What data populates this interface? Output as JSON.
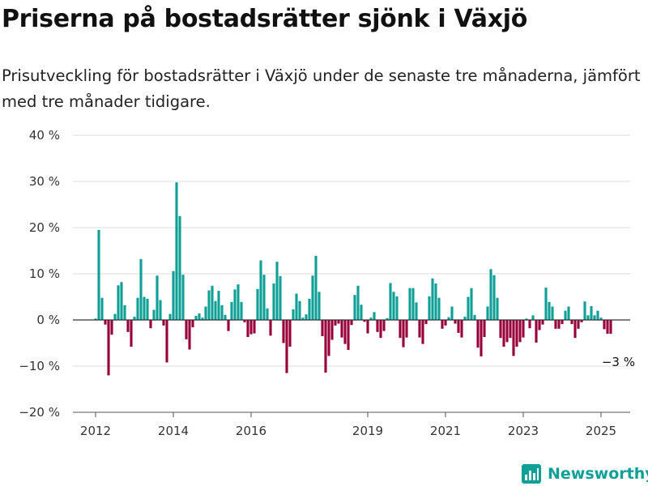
{
  "header": {
    "title": "Priserna på bostadsrätter sjönk i Växjö",
    "subtitle": "Prisutveckling för bostadsrätter i Växjö under de senaste tre månaderna, jämfört med tre månader tidigare."
  },
  "brand": {
    "name": "Newsworthy",
    "logo_icon": "bar-chart-logo-icon"
  },
  "colors": {
    "positive": "#0e9f97",
    "negative": "#98003a",
    "grid": "#dcdcdc",
    "axis": "#555555",
    "brand": "#0e9f97"
  },
  "chart_data": {
    "type": "bar",
    "title": "Priserna på bostadsrätter sjönk i Växjö",
    "xlabel": "",
    "ylabel": "",
    "ylim": [
      -20,
      40
    ],
    "y_ticks": [
      {
        "value": 40,
        "label": "40 %"
      },
      {
        "value": 30,
        "label": "30 %"
      },
      {
        "value": 20,
        "label": "20 %"
      },
      {
        "value": 10,
        "label": "10 %"
      },
      {
        "value": 0,
        "label": "0 %"
      },
      {
        "value": -10,
        "label": "−10 %"
      },
      {
        "value": -20,
        "label": "−20 %"
      }
    ],
    "x_ticks": [
      {
        "date": "2012-01",
        "label": "2012"
      },
      {
        "date": "2014-01",
        "label": "2014"
      },
      {
        "date": "2016-01",
        "label": "2016"
      },
      {
        "date": "2019-01",
        "label": "2019"
      },
      {
        "date": "2021-01",
        "label": "2021"
      },
      {
        "date": "2023-01",
        "label": "2023"
      },
      {
        "date": "2025-01",
        "label": "2025"
      }
    ],
    "x_range": [
      "2011-06",
      "2025-10"
    ],
    "grid": true,
    "legend": "none",
    "annotation": {
      "text": "−3 %",
      "date": "2025-04",
      "value": -3
    },
    "series": [
      {
        "data": [
          [
            "2012-01",
            0.3
          ],
          [
            "2012-02",
            19.5
          ],
          [
            "2012-03",
            4.8
          ],
          [
            "2012-04",
            -1
          ],
          [
            "2012-05",
            -12
          ],
          [
            "2012-06",
            -3.2
          ],
          [
            "2012-07",
            1.3
          ],
          [
            "2012-08",
            7.5
          ],
          [
            "2012-09",
            8.2
          ],
          [
            "2012-10",
            3.2
          ],
          [
            "2012-11",
            -2.6
          ],
          [
            "2012-12",
            -5.8
          ],
          [
            "2013-01",
            0.7
          ],
          [
            "2013-02",
            4.8
          ],
          [
            "2013-03",
            13.2
          ],
          [
            "2013-04",
            5
          ],
          [
            "2013-05",
            4.6
          ],
          [
            "2013-06",
            -1.8
          ],
          [
            "2013-07",
            2.2
          ],
          [
            "2013-08",
            9.6
          ],
          [
            "2013-09",
            4.3
          ],
          [
            "2013-10",
            -1.2
          ],
          [
            "2013-11",
            -9.2
          ],
          [
            "2013-12",
            1.3
          ],
          [
            "2014-01",
            10.6
          ],
          [
            "2014-02",
            29.8
          ],
          [
            "2014-03",
            22.5
          ],
          [
            "2014-04",
            9.8
          ],
          [
            "2014-05",
            -4.2
          ],
          [
            "2014-06",
            -6.4
          ],
          [
            "2014-07",
            -1.6
          ],
          [
            "2014-08",
            0.9
          ],
          [
            "2014-09",
            1.4
          ],
          [
            "2014-10",
            0.5
          ],
          [
            "2014-11",
            2.9
          ],
          [
            "2014-12",
            6.4
          ],
          [
            "2015-01",
            7.4
          ],
          [
            "2015-02",
            4.1
          ],
          [
            "2015-03",
            6.3
          ],
          [
            "2015-04",
            3.2
          ],
          [
            "2015-05",
            1.1
          ],
          [
            "2015-06",
            -2.4
          ],
          [
            "2015-07",
            3.9
          ],
          [
            "2015-08",
            6.6
          ],
          [
            "2015-09",
            7.7
          ],
          [
            "2015-10",
            3.9
          ],
          [
            "2015-11",
            -0.5
          ],
          [
            "2015-12",
            -3.7
          ],
          [
            "2016-01",
            -3.1
          ],
          [
            "2016-02",
            -2.9
          ],
          [
            "2016-03",
            6.7
          ],
          [
            "2016-04",
            12.9
          ],
          [
            "2016-05",
            9.8
          ],
          [
            "2016-06",
            2.5
          ],
          [
            "2016-07",
            -3.4
          ],
          [
            "2016-08",
            7.9
          ],
          [
            "2016-09",
            12.6
          ],
          [
            "2016-10",
            9.5
          ],
          [
            "2016-11",
            -5
          ],
          [
            "2016-12",
            -11.5
          ],
          [
            "2017-01",
            -5.8
          ],
          [
            "2017-02",
            2.3
          ],
          [
            "2017-03",
            5.7
          ],
          [
            "2017-04",
            4.1
          ],
          [
            "2017-05",
            0.5
          ],
          [
            "2017-06",
            1.2
          ],
          [
            "2017-07",
            4.6
          ],
          [
            "2017-08",
            9.6
          ],
          [
            "2017-09",
            13.9
          ],
          [
            "2017-10",
            6.1
          ],
          [
            "2017-11",
            -3.5
          ],
          [
            "2017-12",
            -11.4
          ],
          [
            "2018-01",
            -7.8
          ],
          [
            "2018-02",
            -4.3
          ],
          [
            "2018-03",
            -1.2
          ],
          [
            "2018-04",
            -0.8
          ],
          [
            "2018-05",
            -3.8
          ],
          [
            "2018-06",
            -5.2
          ],
          [
            "2018-07",
            -6.5
          ],
          [
            "2018-08",
            -1.1
          ],
          [
            "2018-09",
            5.4
          ],
          [
            "2018-10",
            7.4
          ],
          [
            "2018-11",
            3.3
          ],
          [
            "2018-12",
            -0.4
          ],
          [
            "2019-01",
            -2.9
          ],
          [
            "2019-02",
            0.5
          ],
          [
            "2019-03",
            1.7
          ],
          [
            "2019-04",
            -2.6
          ],
          [
            "2019-05",
            -3.9
          ],
          [
            "2019-06",
            -2.4
          ],
          [
            "2019-07",
            0.4
          ],
          [
            "2019-08",
            8
          ],
          [
            "2019-09",
            6.1
          ],
          [
            "2019-10",
            5.1
          ],
          [
            "2019-11",
            -3.9
          ],
          [
            "2019-12",
            -5.9
          ],
          [
            "2020-01",
            -3.8
          ],
          [
            "2020-02",
            6.9
          ],
          [
            "2020-03",
            6.9
          ],
          [
            "2020-04",
            3.8
          ],
          [
            "2020-05",
            -3.8
          ],
          [
            "2020-06",
            -5.2
          ],
          [
            "2020-07",
            -0.9
          ],
          [
            "2020-08",
            5.1
          ],
          [
            "2020-09",
            9
          ],
          [
            "2020-10",
            7.9
          ],
          [
            "2020-11",
            4.8
          ],
          [
            "2020-12",
            -1.9
          ],
          [
            "2021-01",
            -1.2
          ],
          [
            "2021-02",
            0.6
          ],
          [
            "2021-03",
            2.9
          ],
          [
            "2021-04",
            -0.8
          ],
          [
            "2021-05",
            -2.8
          ],
          [
            "2021-06",
            -3.8
          ],
          [
            "2021-07",
            0.7
          ],
          [
            "2021-08",
            5
          ],
          [
            "2021-09",
            6.9
          ],
          [
            "2021-10",
            1.1
          ],
          [
            "2021-11",
            -6
          ],
          [
            "2021-12",
            -7.9
          ],
          [
            "2022-01",
            -3.7
          ],
          [
            "2022-02",
            2.9
          ],
          [
            "2022-03",
            11
          ],
          [
            "2022-04",
            9.7
          ],
          [
            "2022-05",
            4.8
          ],
          [
            "2022-06",
            -3.9
          ],
          [
            "2022-07",
            -5.8
          ],
          [
            "2022-08",
            -4.8
          ],
          [
            "2022-09",
            -3.9
          ],
          [
            "2022-10",
            -7.8
          ],
          [
            "2022-11",
            -5.8
          ],
          [
            "2022-12",
            -4.8
          ],
          [
            "2023-01",
            -3.8
          ],
          [
            "2023-02",
            0.3
          ],
          [
            "2023-03",
            -1.8
          ],
          [
            "2023-04",
            1
          ],
          [
            "2023-05",
            -4.9
          ],
          [
            "2023-06",
            -2.2
          ],
          [
            "2023-07",
            -1
          ],
          [
            "2023-08",
            7
          ],
          [
            "2023-09",
            3.9
          ],
          [
            "2023-10",
            2.9
          ],
          [
            "2023-11",
            -1.9
          ],
          [
            "2023-12",
            -1.9
          ],
          [
            "2024-01",
            -0.9
          ],
          [
            "2024-02",
            2
          ],
          [
            "2024-03",
            2.9
          ],
          [
            "2024-04",
            -0.9
          ],
          [
            "2024-05",
            -3.9
          ],
          [
            "2024-06",
            -1.9
          ],
          [
            "2024-07",
            -0.5
          ],
          [
            "2024-08",
            4
          ],
          [
            "2024-09",
            1
          ],
          [
            "2024-10",
            3
          ],
          [
            "2024-11",
            1
          ],
          [
            "2024-12",
            2
          ],
          [
            "2025-01",
            0.5
          ],
          [
            "2025-02",
            -2
          ],
          [
            "2025-03",
            -3
          ],
          [
            "2025-04",
            -3
          ]
        ]
      }
    ]
  }
}
